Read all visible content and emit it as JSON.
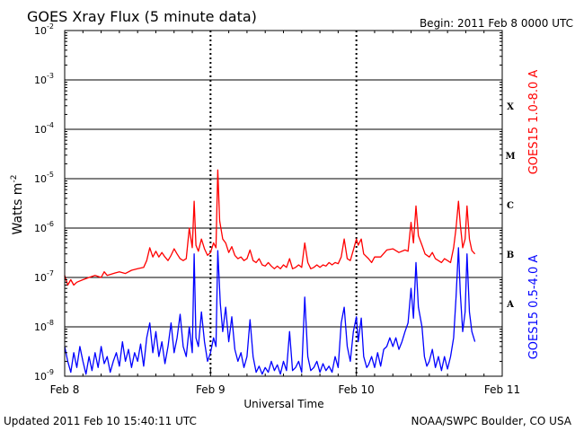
{
  "header": {
    "title": "GOES Xray Flux (5 minute data)",
    "begin": "Begin:  2011 Feb 8 0000 UTC"
  },
  "footer": {
    "updated": "Updated 2011 Feb 10 15:40:11 UTC",
    "credit": "NOAA/SWPC Boulder, CO USA"
  },
  "chart_data": {
    "type": "line",
    "xlabel": "Universal Time",
    "ylabel_base": "Watts m",
    "ylabel_exp": "-2",
    "yscale": "log",
    "ylim": [
      1e-09,
      0.01
    ],
    "xlim": [
      0,
      72
    ],
    "x_unit": "hours since 2011 Feb 8 0000 UTC",
    "x_ticks": [
      {
        "x": 0,
        "label": "Feb 8"
      },
      {
        "x": 24,
        "label": "Feb 9"
      },
      {
        "x": 48,
        "label": "Feb 10"
      },
      {
        "x": 72,
        "label": "Feb 11"
      }
    ],
    "y_ticks": [
      {
        "exp": -2,
        "base": "10",
        "sup": "-2"
      },
      {
        "exp": -3,
        "base": "10",
        "sup": "-3"
      },
      {
        "exp": -4,
        "base": "10",
        "sup": "-4"
      },
      {
        "exp": -5,
        "base": "10",
        "sup": "-5"
      },
      {
        "exp": -6,
        "base": "10",
        "sup": "-6"
      },
      {
        "exp": -7,
        "base": "10",
        "sup": "-7"
      },
      {
        "exp": -8,
        "base": "10",
        "sup": "-8"
      },
      {
        "exp": -9,
        "base": "10",
        "sup": "-9"
      }
    ],
    "grid": true,
    "flare_classes": [
      {
        "label": "X",
        "value": 0.0003
      },
      {
        "label": "M",
        "value": 3e-05
      },
      {
        "label": "C",
        "value": 3e-06
      },
      {
        "label": "B",
        "value": 3e-07
      },
      {
        "label": "A",
        "value": 3e-08
      }
    ],
    "series": [
      {
        "name": "GOES15 1.0-8.0 A",
        "color": "#ff0000",
        "points": [
          [
            0,
            1.1e-07
          ],
          [
            0.5,
            7e-08
          ],
          [
            1,
            9e-08
          ],
          [
            1.5,
            7e-08
          ],
          [
            2,
            8e-08
          ],
          [
            3,
            9e-08
          ],
          [
            4,
            1e-07
          ],
          [
            5,
            1.1e-07
          ],
          [
            6,
            1e-07
          ],
          [
            6.5,
            1.3e-07
          ],
          [
            7,
            1.1e-07
          ],
          [
            8,
            1.2e-07
          ],
          [
            9,
            1.3e-07
          ],
          [
            10,
            1.2e-07
          ],
          [
            11,
            1.4e-07
          ],
          [
            12,
            1.5e-07
          ],
          [
            13,
            1.6e-07
          ],
          [
            13.5,
            2.2e-07
          ],
          [
            14,
            4e-07
          ],
          [
            14.5,
            2.6e-07
          ],
          [
            15,
            3.4e-07
          ],
          [
            15.5,
            2.6e-07
          ],
          [
            16,
            3.2e-07
          ],
          [
            16.5,
            2.6e-07
          ],
          [
            17,
            2.2e-07
          ],
          [
            17.5,
            2.8e-07
          ],
          [
            18,
            3.8e-07
          ],
          [
            18.5,
            3e-07
          ],
          [
            19,
            2.4e-07
          ],
          [
            19.5,
            2.2e-07
          ],
          [
            20,
            2.4e-07
          ],
          [
            20.5,
            1e-06
          ],
          [
            21,
            4e-07
          ],
          [
            21.3,
            3.5e-06
          ],
          [
            21.6,
            4.5e-07
          ],
          [
            22,
            3.4e-07
          ],
          [
            22.5,
            6e-07
          ],
          [
            23,
            3.8e-07
          ],
          [
            23.5,
            2.8e-07
          ],
          [
            24,
            3.2e-07
          ],
          [
            24.5,
            5e-07
          ],
          [
            24.9,
            4e-07
          ],
          [
            25.2,
            1.5e-05
          ],
          [
            25.5,
            1.4e-06
          ],
          [
            26,
            6e-07
          ],
          [
            26.5,
            5e-07
          ],
          [
            27,
            3.2e-07
          ],
          [
            27.5,
            4.2e-07
          ],
          [
            28,
            2.8e-07
          ],
          [
            28.5,
            2.4e-07
          ],
          [
            29,
            2.6e-07
          ],
          [
            29.5,
            2.2e-07
          ],
          [
            30,
            2.4e-07
          ],
          [
            30.5,
            3.6e-07
          ],
          [
            31,
            2.2e-07
          ],
          [
            31.5,
            2e-07
          ],
          [
            32,
            2.4e-07
          ],
          [
            32.5,
            1.8e-07
          ],
          [
            33,
            1.7e-07
          ],
          [
            33.5,
            2e-07
          ],
          [
            34,
            1.7e-07
          ],
          [
            34.5,
            1.5e-07
          ],
          [
            35,
            1.7e-07
          ],
          [
            35.5,
            1.5e-07
          ],
          [
            36,
            1.8e-07
          ],
          [
            36.5,
            1.6e-07
          ],
          [
            37,
            2.4e-07
          ],
          [
            37.5,
            1.5e-07
          ],
          [
            38,
            1.6e-07
          ],
          [
            38.5,
            1.8e-07
          ],
          [
            39,
            1.6e-07
          ],
          [
            39.5,
            5e-07
          ],
          [
            40,
            2e-07
          ],
          [
            40.5,
            1.5e-07
          ],
          [
            41,
            1.6e-07
          ],
          [
            41.5,
            1.8e-07
          ],
          [
            42,
            1.6e-07
          ],
          [
            42.5,
            1.8e-07
          ],
          [
            43,
            1.7e-07
          ],
          [
            43.5,
            2e-07
          ],
          [
            44,
            1.8e-07
          ],
          [
            44.5,
            2e-07
          ],
          [
            45,
            1.9e-07
          ],
          [
            45.5,
            2.6e-07
          ],
          [
            46,
            6e-07
          ],
          [
            46.5,
            2.4e-07
          ],
          [
            47,
            2.2e-07
          ],
          [
            47.5,
            3.6e-07
          ],
          [
            48,
            6e-07
          ],
          [
            48.3,
            4.5e-07
          ],
          [
            48.8,
            6e-07
          ],
          [
            49.2,
            3e-07
          ],
          [
            50,
            2.4e-07
          ],
          [
            50.5,
            2e-07
          ],
          [
            51,
            2.6e-07
          ],
          [
            52,
            2.6e-07
          ],
          [
            53,
            3.6e-07
          ],
          [
            54,
            3.8e-07
          ],
          [
            55,
            3.2e-07
          ],
          [
            56,
            3.6e-07
          ],
          [
            56.5,
            3.4e-07
          ],
          [
            57,
            1.3e-06
          ],
          [
            57.4,
            5e-07
          ],
          [
            57.8,
            2.8e-06
          ],
          [
            58.2,
            7e-07
          ],
          [
            58.8,
            4.5e-07
          ],
          [
            59.3,
            3e-07
          ],
          [
            60,
            2.6e-07
          ],
          [
            60.5,
            3.2e-07
          ],
          [
            61,
            2.4e-07
          ],
          [
            62,
            2e-07
          ],
          [
            62.5,
            2.4e-07
          ],
          [
            63,
            2.2e-07
          ],
          [
            63.5,
            2e-07
          ],
          [
            64,
            4e-07
          ],
          [
            64.4,
            1e-06
          ],
          [
            64.8,
            3.5e-06
          ],
          [
            65.1,
            1.2e-06
          ],
          [
            65.5,
            4e-07
          ],
          [
            65.9,
            6e-07
          ],
          [
            66.2,
            2.8e-06
          ],
          [
            66.6,
            6e-07
          ],
          [
            67,
            3.5e-07
          ],
          [
            67.5,
            3e-07
          ]
        ]
      },
      {
        "name": "GOES15 0.5-4.0 A",
        "color": "#0000ff",
        "points": [
          [
            0,
            4e-09
          ],
          [
            0.5,
            2e-09
          ],
          [
            1,
            1.2e-09
          ],
          [
            1.5,
            3e-09
          ],
          [
            2,
            1.5e-09
          ],
          [
            2.5,
            4e-09
          ],
          [
            3,
            2e-09
          ],
          [
            3.5,
            1.1e-09
          ],
          [
            4,
            2.5e-09
          ],
          [
            4.5,
            1.3e-09
          ],
          [
            5,
            3e-09
          ],
          [
            5.5,
            1.5e-09
          ],
          [
            6,
            4e-09
          ],
          [
            6.5,
            1.8e-09
          ],
          [
            7,
            2.5e-09
          ],
          [
            7.5,
            1.2e-09
          ],
          [
            8,
            2e-09
          ],
          [
            8.5,
            3e-09
          ],
          [
            9,
            1.6e-09
          ],
          [
            9.5,
            5e-09
          ],
          [
            10,
            2e-09
          ],
          [
            10.5,
            3.5e-09
          ],
          [
            11,
            1.5e-09
          ],
          [
            11.5,
            3e-09
          ],
          [
            12,
            2e-09
          ],
          [
            12.5,
            4.5e-09
          ],
          [
            13,
            1.6e-09
          ],
          [
            13.5,
            6e-09
          ],
          [
            14,
            1.2e-08
          ],
          [
            14.5,
            3e-09
          ],
          [
            15,
            8e-09
          ],
          [
            15.5,
            2.5e-09
          ],
          [
            16,
            5e-09
          ],
          [
            16.5,
            1.8e-09
          ],
          [
            17,
            4e-09
          ],
          [
            17.5,
            1.2e-08
          ],
          [
            18,
            3e-09
          ],
          [
            18.5,
            6e-09
          ],
          [
            19,
            1.8e-08
          ],
          [
            19.5,
            4e-09
          ],
          [
            20,
            2.5e-09
          ],
          [
            20.5,
            1e-08
          ],
          [
            21,
            3e-09
          ],
          [
            21.3,
            3e-07
          ],
          [
            21.6,
            6e-09
          ],
          [
            22,
            4e-09
          ],
          [
            22.5,
            2e-08
          ],
          [
            23,
            5e-09
          ],
          [
            23.5,
            2e-09
          ],
          [
            24,
            3e-09
          ],
          [
            24.5,
            6e-09
          ],
          [
            24.9,
            4e-09
          ],
          [
            25.2,
            3.5e-07
          ],
          [
            25.6,
            3e-08
          ],
          [
            26,
            8e-09
          ],
          [
            26.5,
            2.5e-08
          ],
          [
            27,
            5e-09
          ],
          [
            27.5,
            1.6e-08
          ],
          [
            28,
            3.5e-09
          ],
          [
            28.5,
            2e-09
          ],
          [
            29,
            3e-09
          ],
          [
            29.5,
            1.5e-09
          ],
          [
            30,
            2.5e-09
          ],
          [
            30.5,
            1.4e-08
          ],
          [
            31,
            2.5e-09
          ],
          [
            31.5,
            1.2e-09
          ],
          [
            32,
            1.6e-09
          ],
          [
            32.5,
            1.1e-09
          ],
          [
            33,
            1.5e-09
          ],
          [
            33.5,
            1.2e-09
          ],
          [
            34,
            2e-09
          ],
          [
            34.5,
            1.3e-09
          ],
          [
            35,
            1.7e-09
          ],
          [
            35.5,
            1.1e-09
          ],
          [
            36,
            2e-09
          ],
          [
            36.5,
            1.3e-09
          ],
          [
            37,
            8e-09
          ],
          [
            37.5,
            1.3e-09
          ],
          [
            38,
            1.5e-09
          ],
          [
            38.5,
            2e-09
          ],
          [
            39,
            1.2e-09
          ],
          [
            39.5,
            4e-08
          ],
          [
            40,
            2.5e-09
          ],
          [
            40.5,
            1.3e-09
          ],
          [
            41,
            1.5e-09
          ],
          [
            41.5,
            2e-09
          ],
          [
            42,
            1.2e-09
          ],
          [
            42.5,
            1.8e-09
          ],
          [
            43,
            1.3e-09
          ],
          [
            43.5,
            1.6e-09
          ],
          [
            44,
            1.2e-09
          ],
          [
            44.5,
            2.5e-09
          ],
          [
            45,
            1.5e-09
          ],
          [
            45.5,
            1.2e-08
          ],
          [
            46,
            2.5e-08
          ],
          [
            46.5,
            4e-09
          ],
          [
            47,
            2e-09
          ],
          [
            47.5,
            8e-09
          ],
          [
            48,
            1.6e-08
          ],
          [
            48.3,
            5e-09
          ],
          [
            48.8,
            1.5e-08
          ],
          [
            49.2,
            2.5e-09
          ],
          [
            49.7,
            1.5e-09
          ],
          [
            50,
            1.7e-09
          ],
          [
            50.5,
            2.5e-09
          ],
          [
            51,
            1.5e-09
          ],
          [
            51.5,
            3e-09
          ],
          [
            52,
            1.6e-09
          ],
          [
            52.5,
            3.5e-09
          ],
          [
            53,
            4e-09
          ],
          [
            53.5,
            6e-09
          ],
          [
            54,
            4e-09
          ],
          [
            54.5,
            6e-09
          ],
          [
            55,
            3.5e-09
          ],
          [
            55.5,
            5e-09
          ],
          [
            56,
            8e-09
          ],
          [
            56.5,
            1.2e-08
          ],
          [
            57,
            6e-08
          ],
          [
            57.4,
            1.5e-08
          ],
          [
            57.8,
            2e-07
          ],
          [
            58.2,
            2.5e-08
          ],
          [
            58.8,
            1e-08
          ],
          [
            59.2,
            2.5e-09
          ],
          [
            59.6,
            1.6e-09
          ],
          [
            60,
            2e-09
          ],
          [
            60.5,
            3.5e-09
          ],
          [
            61,
            1.5e-09
          ],
          [
            61.5,
            2.5e-09
          ],
          [
            62,
            1.3e-09
          ],
          [
            62.5,
            2.5e-09
          ],
          [
            63,
            1.4e-09
          ],
          [
            63.5,
            2.5e-09
          ],
          [
            64,
            6e-09
          ],
          [
            64.4,
            4e-08
          ],
          [
            64.8,
            4e-07
          ],
          [
            65.1,
            5e-08
          ],
          [
            65.5,
            8e-09
          ],
          [
            65.9,
            2e-08
          ],
          [
            66.2,
            3e-07
          ],
          [
            66.6,
            2e-08
          ],
          [
            67,
            8e-09
          ],
          [
            67.5,
            5e-09
          ]
        ]
      }
    ]
  }
}
